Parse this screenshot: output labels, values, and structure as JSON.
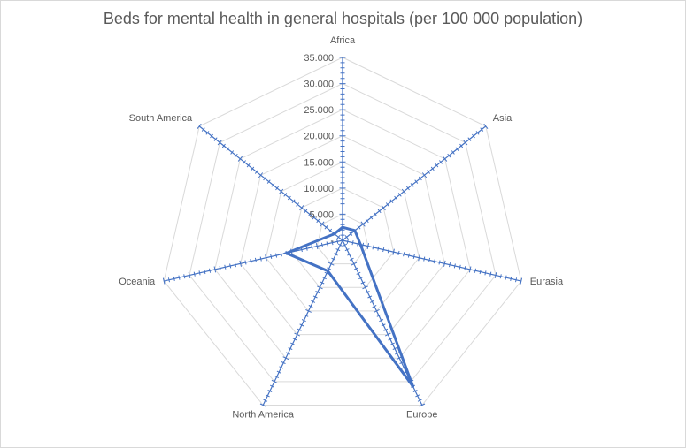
{
  "chart_data": {
    "type": "radar",
    "title": "Beds for mental health in general hospitals (per 100 000 population)",
    "categories": [
      "Africa",
      "Asia",
      "Eurasia",
      "Europe",
      "North America",
      "Oceania",
      "South America"
    ],
    "series": [
      {
        "values": [
          2.5,
          3.0,
          3.5,
          31.0,
          6.5,
          11.0,
          2.0
        ]
      }
    ],
    "rlim": [
      0,
      35
    ],
    "ticks": [
      "-",
      "5.000",
      "10.000",
      "15.000",
      "20.000",
      "25.000",
      "30.000",
      "35.000"
    ],
    "tick_values": [
      0,
      5,
      10,
      15,
      20,
      25,
      30,
      35
    ],
    "grid": true,
    "colors": {
      "series": "#4472c4",
      "axis": "#4472c4",
      "grid": "#d9d9d9",
      "text": "#595959"
    }
  }
}
